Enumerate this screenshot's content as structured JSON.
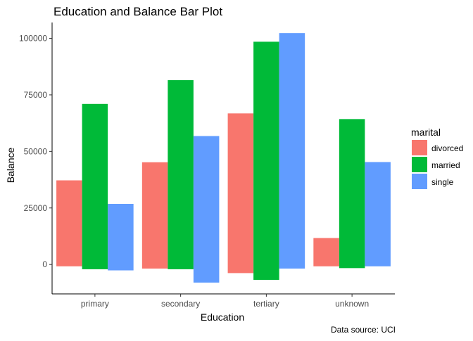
{
  "chart_data": {
    "type": "bar",
    "title": "Education and Balance Bar Plot",
    "xlabel": "Education",
    "ylabel": "Balance",
    "caption": "Data source: UCI",
    "categories": [
      "primary",
      "secondary",
      "tertiary",
      "unknown"
    ],
    "ylim": [
      -13000,
      107000
    ],
    "yticks": [
      0,
      25000,
      50000,
      75000,
      100000
    ],
    "ytick_labels": [
      "0",
      "25000",
      "50000",
      "75000",
      "100000"
    ],
    "grid": false,
    "legend": {
      "title": "marital",
      "position": "right"
    },
    "series": [
      {
        "name": "divorced",
        "color": "#F8766D",
        "values": [
          [
            -800,
            37200
          ],
          [
            -1800,
            45200
          ],
          [
            -3800,
            66800
          ],
          [
            -800,
            11700
          ]
        ]
      },
      {
        "name": "married",
        "color": "#00BA38",
        "values": [
          [
            -2100,
            71000
          ],
          [
            -2100,
            81500
          ],
          [
            -6800,
            98500
          ],
          [
            -1600,
            64300
          ]
        ]
      },
      {
        "name": "single",
        "color": "#619CFF",
        "values": [
          [
            -2600,
            26800
          ],
          [
            -8000,
            56800
          ],
          [
            -1800,
            102300
          ],
          [
            -800,
            45300
          ]
        ]
      }
    ]
  }
}
